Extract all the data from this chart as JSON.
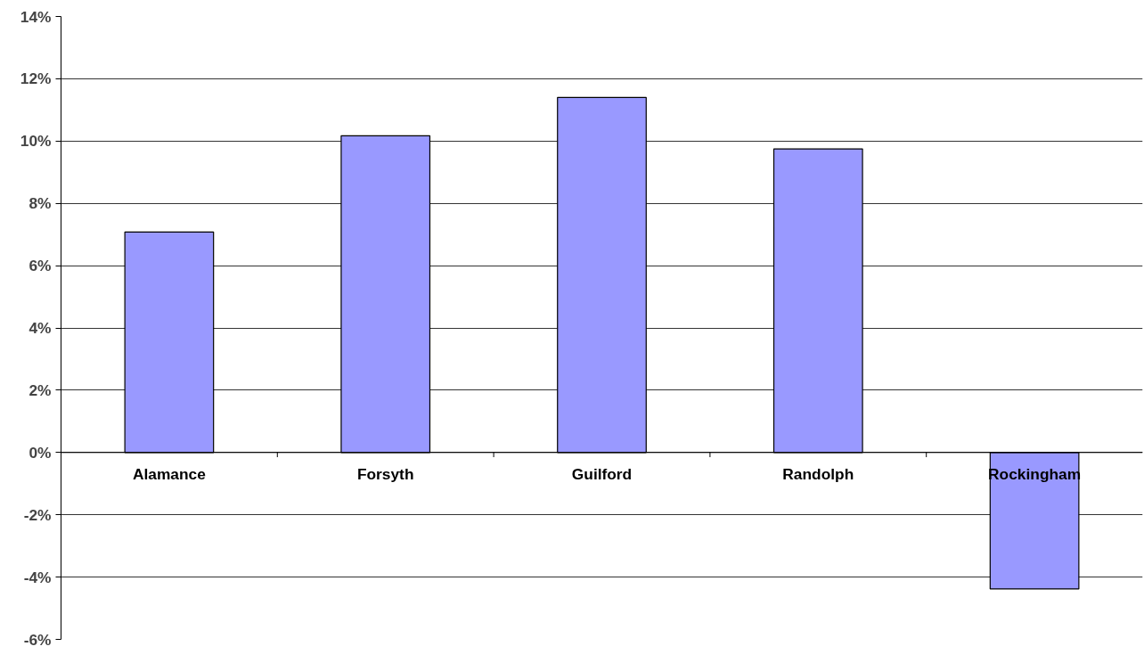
{
  "chart_data": {
    "type": "bar",
    "categories": [
      "Alamance",
      "Forsyth",
      "Guilford",
      "Randolph",
      "Rockingham"
    ],
    "values": [
      7.08,
      10.17,
      11.4,
      9.75,
      -4.38
    ],
    "color": "#9999ff",
    "ylim": [
      -6,
      14
    ],
    "yticks": [
      {
        "value": -6,
        "label": "-6%"
      },
      {
        "value": -4,
        "label": "-4%"
      },
      {
        "value": -2,
        "label": "-2%"
      },
      {
        "value": 0,
        "label": "0%"
      },
      {
        "value": 2,
        "label": "2%"
      },
      {
        "value": 4,
        "label": "4%"
      },
      {
        "value": 6,
        "label": "6%"
      },
      {
        "value": 8,
        "label": "8%"
      },
      {
        "value": 10,
        "label": "10%"
      },
      {
        "value": 12,
        "label": "12%"
      },
      {
        "value": 14,
        "label": "14%"
      }
    ],
    "grid": "y"
  }
}
